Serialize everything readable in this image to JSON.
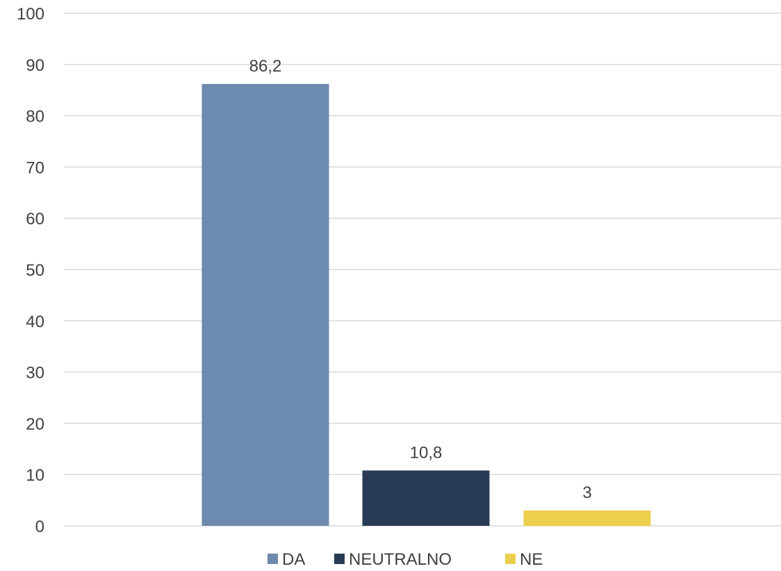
{
  "chart_data": {
    "type": "bar",
    "series": [
      {
        "name": "DA",
        "value": 86.2,
        "label": "86,2",
        "color": "#6d8aaf"
      },
      {
        "name": "NEUTRALNO",
        "value": 10.8,
        "label": "10,8",
        "color": "#293b55"
      },
      {
        "name": "NE",
        "value": 3,
        "label": "3",
        "color": "#ebcf4d"
      }
    ],
    "ylim": [
      0,
      100
    ],
    "yticks": [
      "0",
      "10",
      "20",
      "30",
      "40",
      "50",
      "60",
      "70",
      "80",
      "90",
      "100"
    ],
    "grid": true,
    "legend_position": "bottom",
    "gridline_color": "#d9d9d9"
  }
}
